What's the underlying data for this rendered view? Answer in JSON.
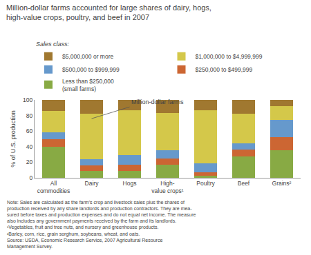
{
  "chart_data": {
    "type": "bar",
    "stacked": true,
    "title": "Million-dollar farms accounted for large shares of dairy, hogs,\nhigh-value crops, poultry, and beef in 2007",
    "categories": [
      "All\ncommodities",
      "Dairy",
      "Hogs",
      "High-\nvalue crops¹",
      "Poultry",
      "Beef",
      "Grains²"
    ],
    "ylabel": "% of U.S. production",
    "series": [
      {
        "name": "Less than $250,000\n(small farms)",
        "color": "#88AA44",
        "values": [
          40,
          9,
          9,
          17,
          3,
          27,
          35
        ]
      },
      {
        "name": "$250,000 to $499,999",
        "color": "#CC6633",
        "values": [
          10,
          7,
          8,
          8,
          4,
          9,
          17
        ]
      },
      {
        "name": "$500,000 to $999,999",
        "color": "#6699CC",
        "values": [
          8,
          8,
          12,
          10,
          12,
          8,
          22
        ]
      },
      {
        "name": "$1,000,000 to $4,999,999",
        "color": "#D4C84A",
        "values": [
          28,
          58,
          58,
          48,
          68,
          38,
          18
        ]
      },
      {
        "name": "$5,000,000 or more",
        "color": "#A07830",
        "values": [
          14,
          18,
          13,
          17,
          13,
          18,
          8
        ]
      }
    ],
    "ylim": [
      0,
      100
    ],
    "yticks": [
      0,
      20,
      40,
      60,
      80,
      100
    ],
    "grid": false,
    "legend": "top",
    "legend_title": "Sales class:",
    "annotations": [
      {
        "text": "Million-dollar farms",
        "x": 1,
        "y": 76,
        "text_x": 2,
        "text_y": 91
      }
    ],
    "notes": [
      "Note: Sales are calculated as the farm’s crop and livestock sales plus the shares of",
      "production received by any share landlords and production contractors. They are mea-",
      "sured before taxes and production expenses and do not equal net income. The measure",
      "also includes any government payments received by the farm and its landlords.",
      "¹Vegetables, fruit and tree nuts, and nursery and greenhouse products.",
      "²Barley, corn, rice, grain sorghum, soybeans, wheat, and oats.",
      "Source: USDA, Economic Research Service, 2007 Agricultural Resource",
      "Management Survey."
    ]
  }
}
